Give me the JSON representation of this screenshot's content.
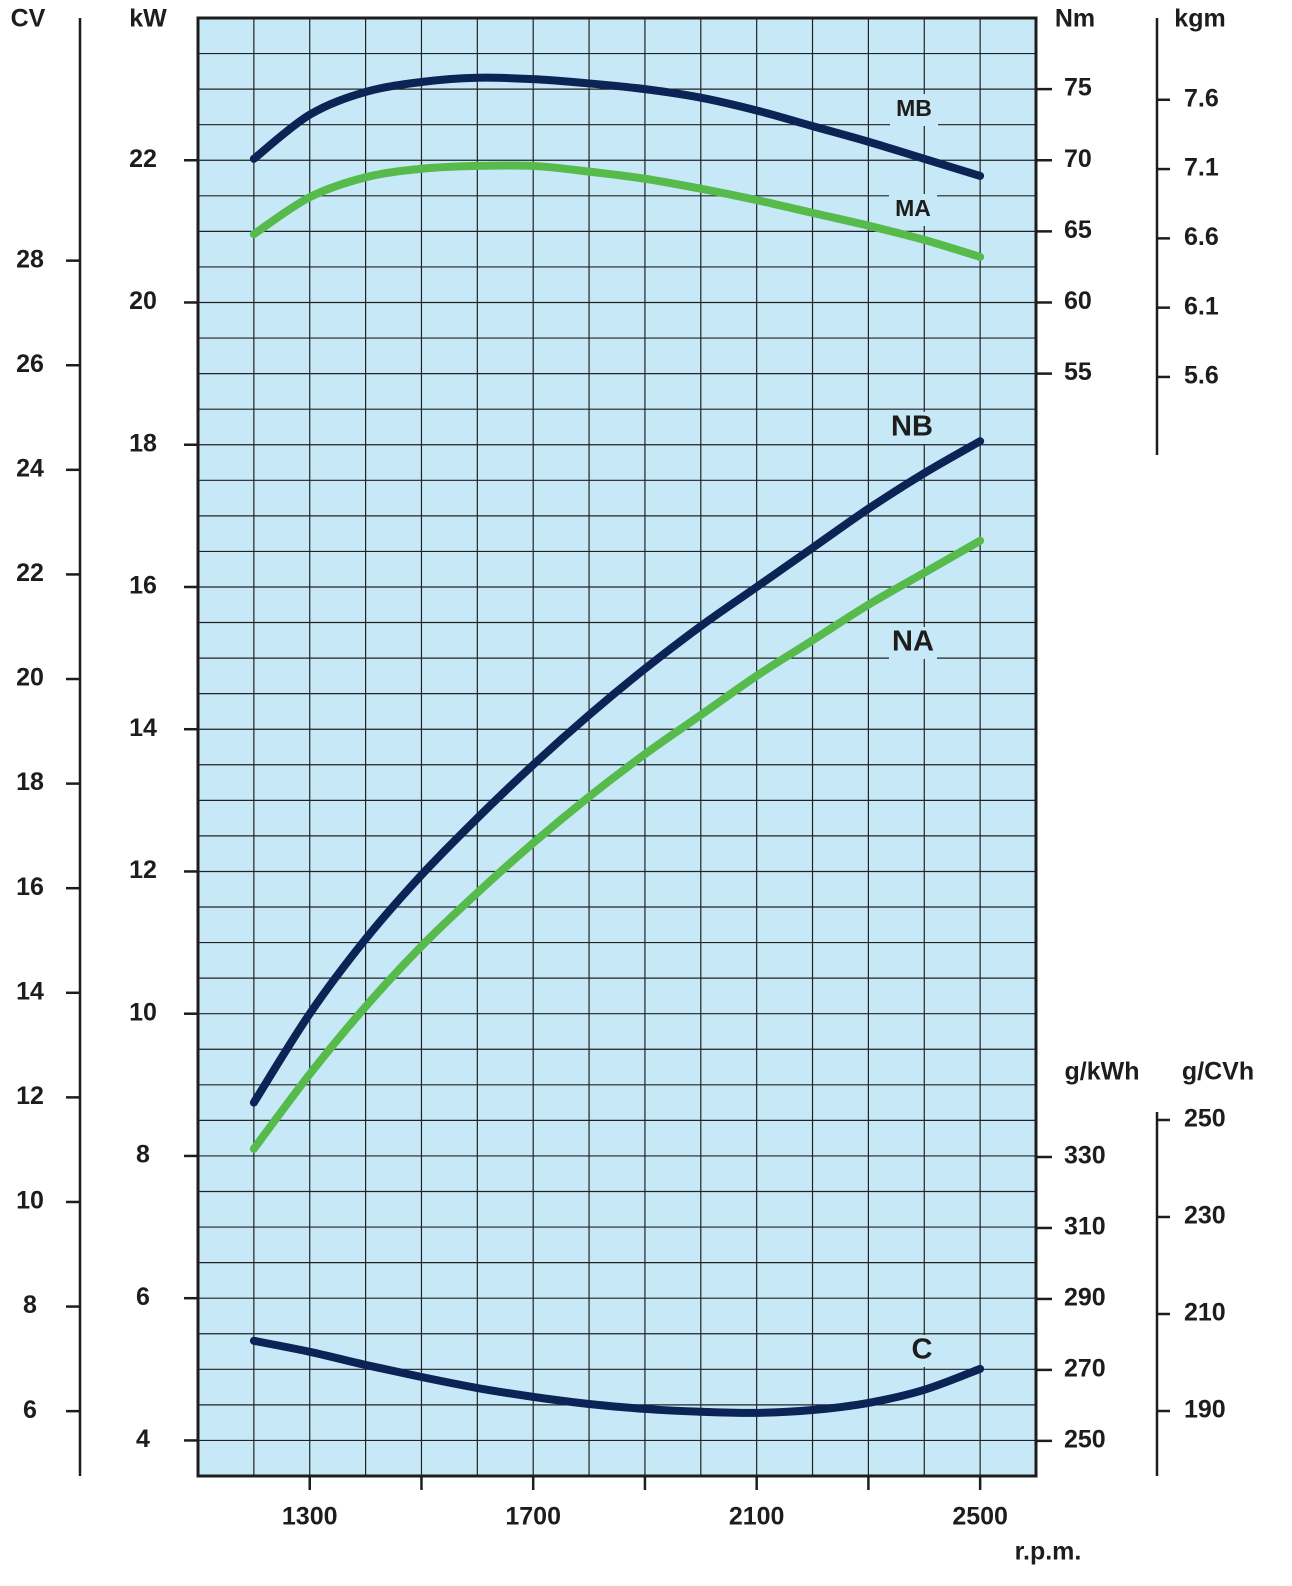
{
  "chart_data": {
    "type": "line",
    "x_label": "r.p.m.",
    "xlim": [
      1100,
      2600
    ],
    "xticks": [
      1300,
      1700,
      2100,
      2500
    ],
    "x_minor_ticks": [
      1500,
      1900,
      2300
    ],
    "grid": true,
    "grid_x_step": 100,
    "grid_y_step": 0.5,
    "axes": {
      "cv": {
        "label": "CV",
        "ylim": [
          4.76,
          32.64
        ],
        "yticks": [
          6,
          8,
          10,
          12,
          14,
          16,
          18,
          20,
          22,
          24,
          26,
          28
        ]
      },
      "kw": {
        "label": "kW",
        "ylim": [
          3.5,
          24
        ],
        "yticks": [
          4,
          6,
          8,
          10,
          12,
          14,
          16,
          18,
          20,
          22
        ]
      },
      "nm": {
        "label": "Nm",
        "ylim": [
          -22.5,
          80
        ],
        "yticks": [
          55,
          60,
          65,
          70,
          75
        ]
      },
      "kgm": {
        "label": "kgm",
        "ylim": [
          -2.33,
          8.19
        ],
        "yticks": [
          5.6,
          6.1,
          6.6,
          7.1,
          7.6
        ]
      },
      "gkwh": {
        "label": "g/kWh",
        "ylim": [
          240.1,
          651
        ],
        "yticks": [
          250,
          270,
          290,
          310,
          330
        ]
      },
      "gcvh": {
        "label": "g/CVh",
        "ylim": [
          176.6,
          477.2
        ],
        "yticks": [
          190,
          210,
          230,
          250
        ]
      }
    },
    "x": [
      1200,
      1300,
      1400,
      1500,
      1600,
      1700,
      1800,
      1900,
      2000,
      2100,
      2200,
      2300,
      2400,
      2500
    ],
    "series": [
      {
        "name": "MB",
        "color": "#0b2455",
        "axis": "nm",
        "values": [
          70.1,
          73.2,
          74.8,
          75.5,
          75.8,
          75.7,
          75.4,
          75.0,
          74.4,
          73.5,
          72.4,
          71.3,
          70.1,
          68.9
        ]
      },
      {
        "name": "MA",
        "color": "#56bb4b",
        "axis": "nm",
        "values": [
          64.8,
          67.4,
          68.8,
          69.4,
          69.6,
          69.6,
          69.2,
          68.7,
          68.0,
          67.2,
          66.3,
          65.4,
          64.4,
          63.2
        ]
      },
      {
        "name": "NB",
        "color": "#0b2455",
        "axis": "kw",
        "values": [
          8.75,
          10.0,
          11.05,
          11.95,
          12.75,
          13.5,
          14.2,
          14.85,
          15.45,
          16.0,
          16.55,
          17.1,
          17.6,
          18.05
        ]
      },
      {
        "name": "NA",
        "color": "#56bb4b",
        "axis": "kw",
        "values": [
          8.1,
          9.15,
          10.1,
          10.95,
          11.7,
          12.4,
          13.05,
          13.65,
          14.2,
          14.75,
          15.25,
          15.75,
          16.2,
          16.65
        ]
      },
      {
        "name": "C",
        "color": "#0b2455",
        "axis": "gkwh",
        "values": [
          278.2,
          275.1,
          271.4,
          268.0,
          264.9,
          262.4,
          260.4,
          259.0,
          258.2,
          257.9,
          258.7,
          260.7,
          264.4,
          270.3
        ]
      }
    ]
  }
}
